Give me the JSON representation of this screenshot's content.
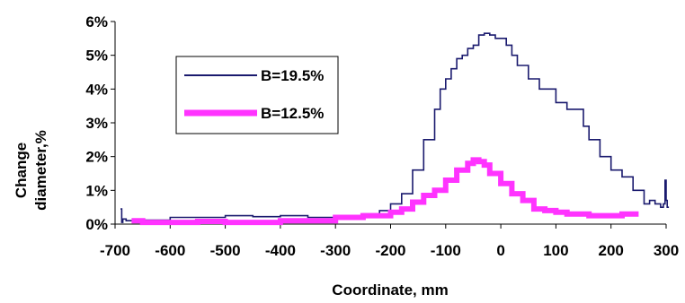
{
  "chart_data": {
    "type": "line",
    "xlabel": "Coordinate, mm",
    "ylabel_lines": [
      "Change",
      "diameter,%"
    ],
    "xlim": [
      -700,
      300
    ],
    "ylim": [
      0,
      6
    ],
    "x_ticks": [
      "-700",
      "-600",
      "-500",
      "-400",
      "-300",
      "-200",
      "-100",
      "0",
      "100",
      "200",
      "300"
    ],
    "y_ticks": [
      "0%",
      "1%",
      "2%",
      "3%",
      "4%",
      "5%",
      "6%"
    ],
    "grid": false,
    "legend_position": "top-left inside plot",
    "series": [
      {
        "name": "B=19.5%",
        "color": "#1a1a6e",
        "style": "thin",
        "x": [
          -690,
          -688,
          -686,
          -680,
          -650,
          -600,
          -500,
          -450,
          -400,
          -350,
          -300,
          -250,
          -220,
          -200,
          -180,
          -160,
          -140,
          -120,
          -110,
          -100,
          -90,
          -80,
          -70,
          -60,
          -50,
          -40,
          -30,
          -20,
          -10,
          0,
          10,
          20,
          30,
          50,
          70,
          100,
          120,
          150,
          160,
          180,
          200,
          220,
          240,
          260,
          270,
          280,
          290,
          295,
          298,
          300,
          302,
          305
        ],
        "values": [
          0.45,
          0.05,
          0.15,
          0.1,
          0.12,
          0.2,
          0.25,
          0.22,
          0.25,
          0.2,
          0.2,
          0.3,
          0.4,
          0.6,
          0.9,
          1.6,
          2.5,
          3.4,
          4.0,
          4.3,
          4.6,
          4.9,
          5.0,
          5.2,
          5.3,
          5.6,
          5.65,
          5.6,
          5.5,
          5.5,
          5.3,
          5.0,
          4.7,
          4.3,
          4.0,
          3.6,
          3.4,
          2.9,
          2.5,
          2.0,
          1.6,
          1.4,
          1.0,
          0.6,
          0.7,
          0.6,
          0.5,
          0.6,
          1.3,
          0.7,
          0.5,
          0.5
        ]
      },
      {
        "name": "B=12.5%",
        "color": "#ff33ff",
        "style": "thick",
        "x": [
          -670,
          -650,
          -600,
          -550,
          -500,
          -450,
          -400,
          -350,
          -300,
          -250,
          -200,
          -180,
          -160,
          -140,
          -120,
          -100,
          -80,
          -60,
          -50,
          -40,
          -30,
          -20,
          0,
          20,
          40,
          60,
          80,
          100,
          120,
          140,
          160,
          180,
          200,
          220,
          250
        ],
        "values": [
          0.1,
          0.05,
          0.05,
          0.08,
          0.05,
          0.05,
          0.1,
          0.1,
          0.2,
          0.25,
          0.35,
          0.45,
          0.65,
          0.85,
          1.0,
          1.3,
          1.6,
          1.8,
          1.9,
          1.85,
          1.75,
          1.5,
          1.2,
          0.9,
          0.7,
          0.45,
          0.4,
          0.35,
          0.3,
          0.3,
          0.25,
          0.25,
          0.25,
          0.3,
          0.3
        ]
      }
    ]
  }
}
